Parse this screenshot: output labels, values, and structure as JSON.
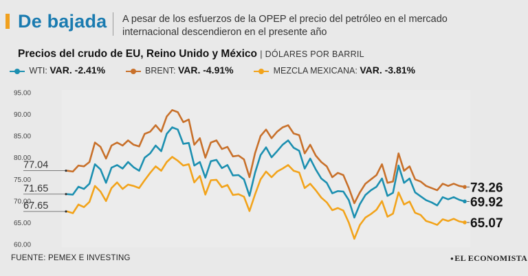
{
  "header": {
    "title": "De bajada",
    "deck": "A pesar de los esfuerzos de la OPEP el precio del petróleo en el mercado internacional descendieron en el presente año"
  },
  "colors": {
    "wti": "#1b8fb0",
    "brent": "#c8702a",
    "mezcla": "#f2a31a",
    "title": "#1a7bb0",
    "accent": "#f0a01e"
  },
  "chart_data": {
    "type": "line",
    "title": "Precios del crudo de EU, Reino Unido y México",
    "unit_label": "DÓLARES POR BARRIL",
    "xlabel": "",
    "ylabel": "",
    "ylim": [
      60,
      95
    ],
    "y_ticks": [
      "95.00",
      "90.00",
      "85.00",
      "80.00",
      "75.00",
      "70.00",
      "65.00",
      "60.00"
    ],
    "grid": false,
    "x": [
      0,
      8,
      16,
      24,
      32,
      40,
      48,
      56,
      64,
      72,
      80,
      88,
      96,
      104,
      112,
      120,
      128,
      136,
      144,
      152,
      160,
      168,
      176,
      184,
      192,
      200,
      208,
      216,
      224,
      232,
      240,
      248,
      256,
      264,
      272,
      280,
      288,
      296,
      304,
      312,
      320,
      328,
      336,
      344,
      352,
      360,
      368,
      376,
      384,
      392,
      400,
      408,
      416,
      424,
      432,
      440,
      448,
      456,
      464,
      472,
      480,
      488,
      496,
      504,
      512,
      520,
      528,
      536,
      544,
      552,
      560,
      568,
      576
    ],
    "series": [
      {
        "name": "BRENT",
        "legend_label": "BRENT:",
        "variation": "VAR. -4.91%",
        "start_label": "77.04",
        "end_label": "73.26",
        "values": [
          77.0,
          76.8,
          78.2,
          78.0,
          79.0,
          83.5,
          82.5,
          79.8,
          82.8,
          83.5,
          82.8,
          84.0,
          83.0,
          82.6,
          85.5,
          86.0,
          87.5,
          86.0,
          89.5,
          91.0,
          90.5,
          88.2,
          88.8,
          83.0,
          84.5,
          80.0,
          83.5,
          84.0,
          82.0,
          82.5,
          80.3,
          80.5,
          79.6,
          75.5,
          81.0,
          85.0,
          86.5,
          84.5,
          86.0,
          87.0,
          87.5,
          85.6,
          85.2,
          81.0,
          83.0,
          80.5,
          79.0,
          78.0,
          75.5,
          76.5,
          76.0,
          73.0,
          69.5,
          72.0,
          74.0,
          75.0,
          76.0,
          78.5,
          74.2,
          74.5,
          81.0,
          77.0,
          78.0,
          75.0,
          74.5,
          73.5,
          73.0,
          72.5,
          74.0,
          73.5,
          74.0,
          73.5,
          73.26
        ]
      },
      {
        "name": "WTI",
        "legend_label": "WTI:",
        "variation": "VAR. -2.41%",
        "start_label": "71.65",
        "end_label": "69.92",
        "values": [
          71.6,
          71.5,
          73.3,
          72.8,
          74.0,
          78.5,
          77.3,
          74.2,
          77.7,
          78.3,
          77.5,
          79.0,
          77.8,
          77.0,
          80.0,
          81.0,
          82.8,
          81.5,
          85.5,
          87.0,
          86.5,
          83.2,
          83.4,
          78.2,
          79.0,
          75.4,
          79.2,
          79.5,
          77.6,
          78.3,
          75.9,
          76.0,
          75.0,
          71.2,
          76.5,
          80.6,
          82.4,
          80.1,
          81.5,
          83.0,
          84.0,
          82.3,
          81.6,
          77.5,
          79.8,
          77.3,
          75.2,
          74.2,
          71.8,
          72.3,
          72.2,
          70.2,
          66.2,
          69.3,
          71.4,
          72.5,
          73.3,
          75.2,
          71.2,
          71.9,
          78.2,
          74.2,
          75.2,
          72.0,
          71.1,
          70.2,
          69.7,
          69.0,
          70.9,
          70.4,
          70.9,
          70.3,
          69.92
        ]
      },
      {
        "name": "MEZCLA MEXICANA",
        "legend_label": "MEZCLA MEXICANA:",
        "variation": "VAR. -3.81%",
        "start_label": "67.65",
        "end_label": "65.07",
        "values": [
          67.6,
          67.2,
          69.2,
          68.6,
          69.8,
          73.5,
          72.2,
          70.0,
          73.0,
          74.3,
          72.8,
          73.8,
          73.5,
          73.0,
          74.8,
          76.5,
          78.0,
          77.0,
          79.0,
          80.2,
          79.3,
          78.2,
          78.5,
          74.3,
          75.8,
          71.5,
          74.8,
          74.9,
          73.2,
          73.7,
          71.4,
          71.6,
          71.0,
          67.7,
          71.5,
          75.0,
          76.8,
          75.5,
          76.8,
          77.5,
          78.3,
          77.0,
          76.6,
          73.0,
          74.0,
          72.5,
          70.8,
          69.7,
          67.9,
          68.4,
          67.8,
          65.0,
          61.3,
          64.5,
          66.2,
          67.0,
          68.0,
          70.0,
          66.4,
          67.1,
          72.0,
          69.2,
          69.9,
          67.3,
          66.8,
          65.4,
          65.0,
          64.5,
          65.8,
          65.4,
          65.9,
          65.3,
          65.07
        ]
      }
    ],
    "source": "FUENTE: PEMEX E INVESTING",
    "brand": "EL ECONOMISTA"
  }
}
